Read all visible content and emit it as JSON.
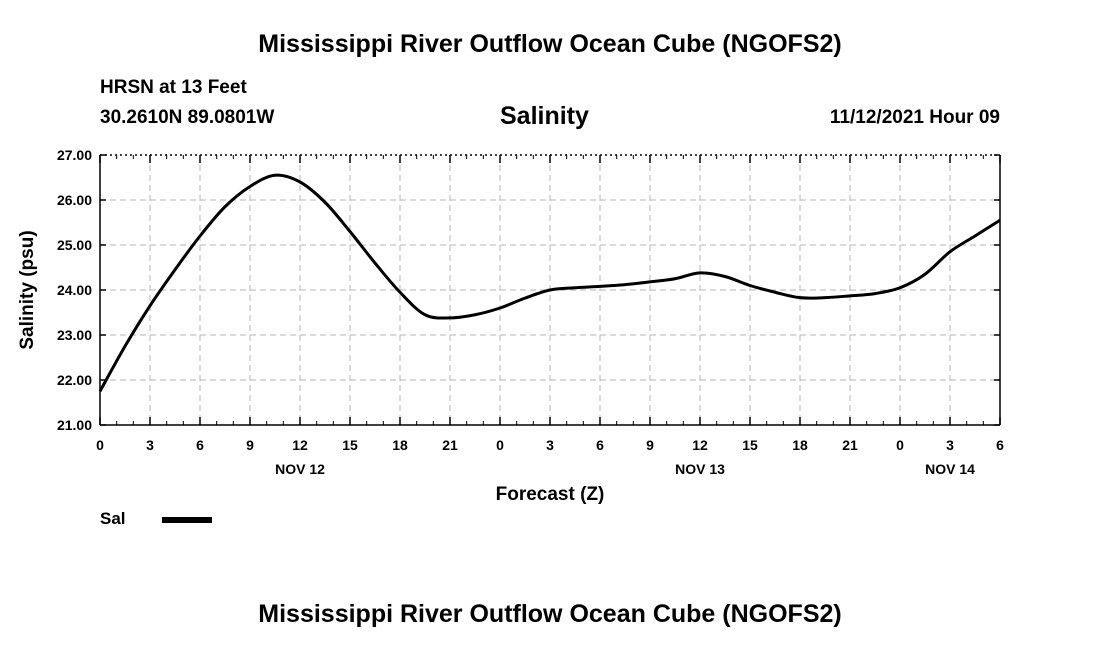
{
  "header": {
    "title": "Mississippi River Outflow Ocean Cube (NGOFS2)",
    "station_line": "HRSN at 13 Feet",
    "coords": "30.2610N  89.0801W",
    "variable": "Salinity",
    "datetime": "11/12/2021 Hour 09"
  },
  "legend": {
    "label": "Sal",
    "color": "#000000"
  },
  "footer": {
    "title": "Mississippi River Outflow Ocean Cube (NGOFS2)"
  },
  "chart_data": {
    "type": "line",
    "title": "Salinity",
    "xlabel": "Forecast (Z)",
    "ylabel": "Salinity (psu)",
    "xlim": [
      0,
      54
    ],
    "ylim": [
      21.0,
      27.0
    ],
    "grid": true,
    "y_ticks": [
      "21.00",
      "22.00",
      "23.00",
      "24.00",
      "25.00",
      "26.00",
      "27.00"
    ],
    "x_tick_labels": [
      "0",
      "3",
      "6",
      "9",
      "12",
      "15",
      "18",
      "21",
      "0",
      "3",
      "6",
      "9",
      "12",
      "15",
      "18",
      "21",
      "0",
      "3",
      "6"
    ],
    "date_labels": [
      {
        "label": "NOV 12",
        "hour": 12
      },
      {
        "label": "NOV 13",
        "hour": 36
      },
      {
        "label": "NOV 14",
        "hour": 51
      }
    ],
    "series": [
      {
        "name": "Sal",
        "x": [
          0,
          1.5,
          3,
          4.5,
          6,
          7.5,
          9,
          10.5,
          12,
          13.5,
          15,
          16.5,
          18,
          19.5,
          21,
          22.5,
          24,
          25.5,
          27,
          28.5,
          30,
          31.5,
          33,
          34.5,
          36,
          37.5,
          39,
          40.5,
          42,
          43.5,
          45,
          46.5,
          48,
          49.5,
          51,
          52.5,
          54
        ],
        "values": [
          21.75,
          22.75,
          23.65,
          24.45,
          25.2,
          25.85,
          26.3,
          26.55,
          26.4,
          25.95,
          25.3,
          24.6,
          23.95,
          23.45,
          23.38,
          23.45,
          23.6,
          23.82,
          24.0,
          24.05,
          24.08,
          24.12,
          24.18,
          24.25,
          24.38,
          24.3,
          24.1,
          23.95,
          23.83,
          23.83,
          23.87,
          23.92,
          24.05,
          24.35,
          24.85,
          25.2,
          25.55
        ]
      }
    ]
  }
}
